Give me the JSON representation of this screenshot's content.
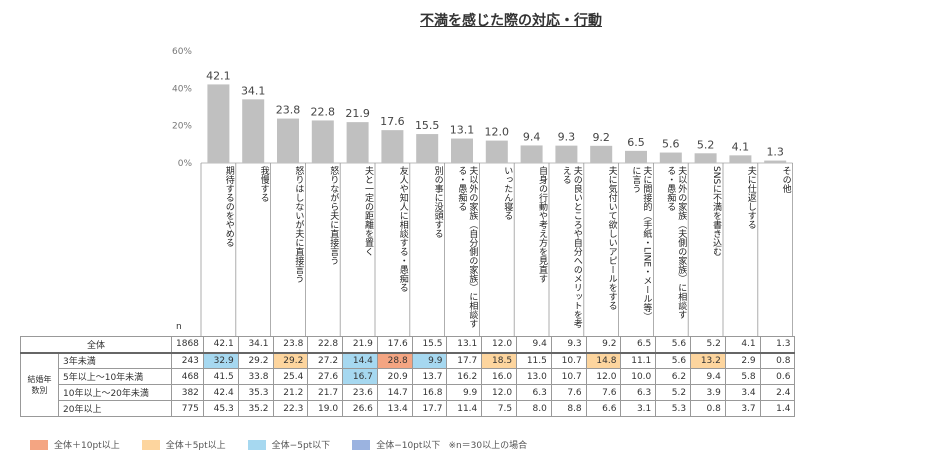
{
  "chart_data": {
    "type": "bar",
    "title": "不満を感じた際の対応・行動",
    "ylim": [
      0,
      60
    ],
    "yticks": [
      "0%",
      "20%",
      "40%",
      "60%"
    ],
    "grid": false,
    "bar_color": "#c0c0c0",
    "categories": [
      "期待するのをやめる",
      "我慢する",
      "怒りはしないが夫に直接言う",
      "怒りながら夫に直接言う",
      "夫と一定の距離を置く",
      "友人や知人に相談する・愚痴る",
      "別の事に没頭する",
      "夫以外の家族（自分側の家族）に相談する・愚痴る",
      "いったん寝る",
      "自身の行動や考え方を見直す",
      "夫の良いところや自分へのメリットを考える",
      "夫に気付いて欲しいアピールをする",
      "夫に間接的（手紙・LINE・メール等）に言う",
      "夫以外の家族（夫側の家族）に相談する・愚痴る",
      "SNSに不満を書き込む",
      "夫に仕返しする",
      "その他"
    ],
    "values": [
      42.1,
      34.1,
      23.8,
      22.8,
      21.9,
      17.6,
      15.5,
      13.1,
      12.0,
      9.4,
      9.3,
      9.2,
      6.5,
      5.6,
      5.2,
      4.1,
      1.3
    ]
  },
  "table": {
    "n_label": "n",
    "group_label": "結婚年数別",
    "rows": [
      {
        "label": "全体",
        "n": "1868",
        "values": [
          "42.1",
          "34.1",
          "23.8",
          "22.8",
          "21.9",
          "17.6",
          "15.5",
          "13.1",
          "12.0",
          "9.4",
          "9.3",
          "9.2",
          "6.5",
          "5.6",
          "5.2",
          "4.1",
          "1.3"
        ],
        "highlights": [
          "",
          "",
          "",
          "",
          "",
          "",
          "",
          "",
          "",
          "",
          "",
          "",
          "",
          "",
          "",
          "",
          ""
        ]
      },
      {
        "label": "3年未満",
        "n": "243",
        "values": [
          "32.9",
          "29.2",
          "29.2",
          "27.2",
          "14.4",
          "28.8",
          "9.9",
          "17.7",
          "18.5",
          "11.5",
          "10.7",
          "14.8",
          "11.1",
          "5.6",
          "13.2",
          "2.9",
          "0.8"
        ],
        "highlights": [
          "m5",
          "",
          "p5",
          "",
          "m5",
          "p10",
          "m5",
          "",
          "p5",
          "",
          "",
          "p5",
          "",
          "",
          "p5",
          "",
          ""
        ]
      },
      {
        "label": "5年以上～10年未満",
        "n": "468",
        "values": [
          "41.5",
          "33.8",
          "25.4",
          "27.6",
          "16.7",
          "20.9",
          "13.7",
          "16.2",
          "16.0",
          "13.0",
          "10.7",
          "12.0",
          "10.0",
          "6.2",
          "9.4",
          "5.8",
          "0.6"
        ],
        "highlights": [
          "",
          "",
          "",
          "",
          "m5",
          "",
          "",
          "",
          "",
          "",
          "",
          "",
          "",
          "",
          "",
          "",
          ""
        ]
      },
      {
        "label": "10年以上～20年未満",
        "n": "382",
        "values": [
          "42.4",
          "35.3",
          "21.2",
          "21.7",
          "23.6",
          "14.7",
          "16.8",
          "9.9",
          "12.0",
          "6.3",
          "7.6",
          "7.6",
          "6.3",
          "5.2",
          "3.9",
          "3.4",
          "2.4"
        ],
        "highlights": [
          "",
          "",
          "",
          "",
          "",
          "",
          "",
          "",
          "",
          "",
          "",
          "",
          "",
          "",
          "",
          "",
          ""
        ]
      },
      {
        "label": "20年以上",
        "n": "775",
        "values": [
          "45.3",
          "35.2",
          "22.3",
          "19.0",
          "26.6",
          "13.4",
          "17.7",
          "11.4",
          "7.5",
          "8.0",
          "8.8",
          "6.6",
          "3.1",
          "5.3",
          "0.8",
          "3.7",
          "1.4"
        ],
        "highlights": [
          "",
          "",
          "",
          "",
          "",
          "",
          "",
          "",
          "",
          "",
          "",
          "",
          "",
          "",
          "",
          "",
          ""
        ]
      }
    ]
  },
  "highlight_colors": {
    "p10": "#f4a582",
    "p5": "#fdd59e",
    "m5": "#a6d8f0",
    "m10": "#9bb3e0"
  },
  "legend": [
    {
      "key": "p10",
      "label": "全体＋10pt以上"
    },
    {
      "key": "p5",
      "label": "全体＋5pt以上"
    },
    {
      "key": "m5",
      "label": "全体−5pt以下"
    },
    {
      "key": "m10",
      "label": "全体−10pt以下"
    }
  ],
  "footnote": "※n＝30以上の場合"
}
